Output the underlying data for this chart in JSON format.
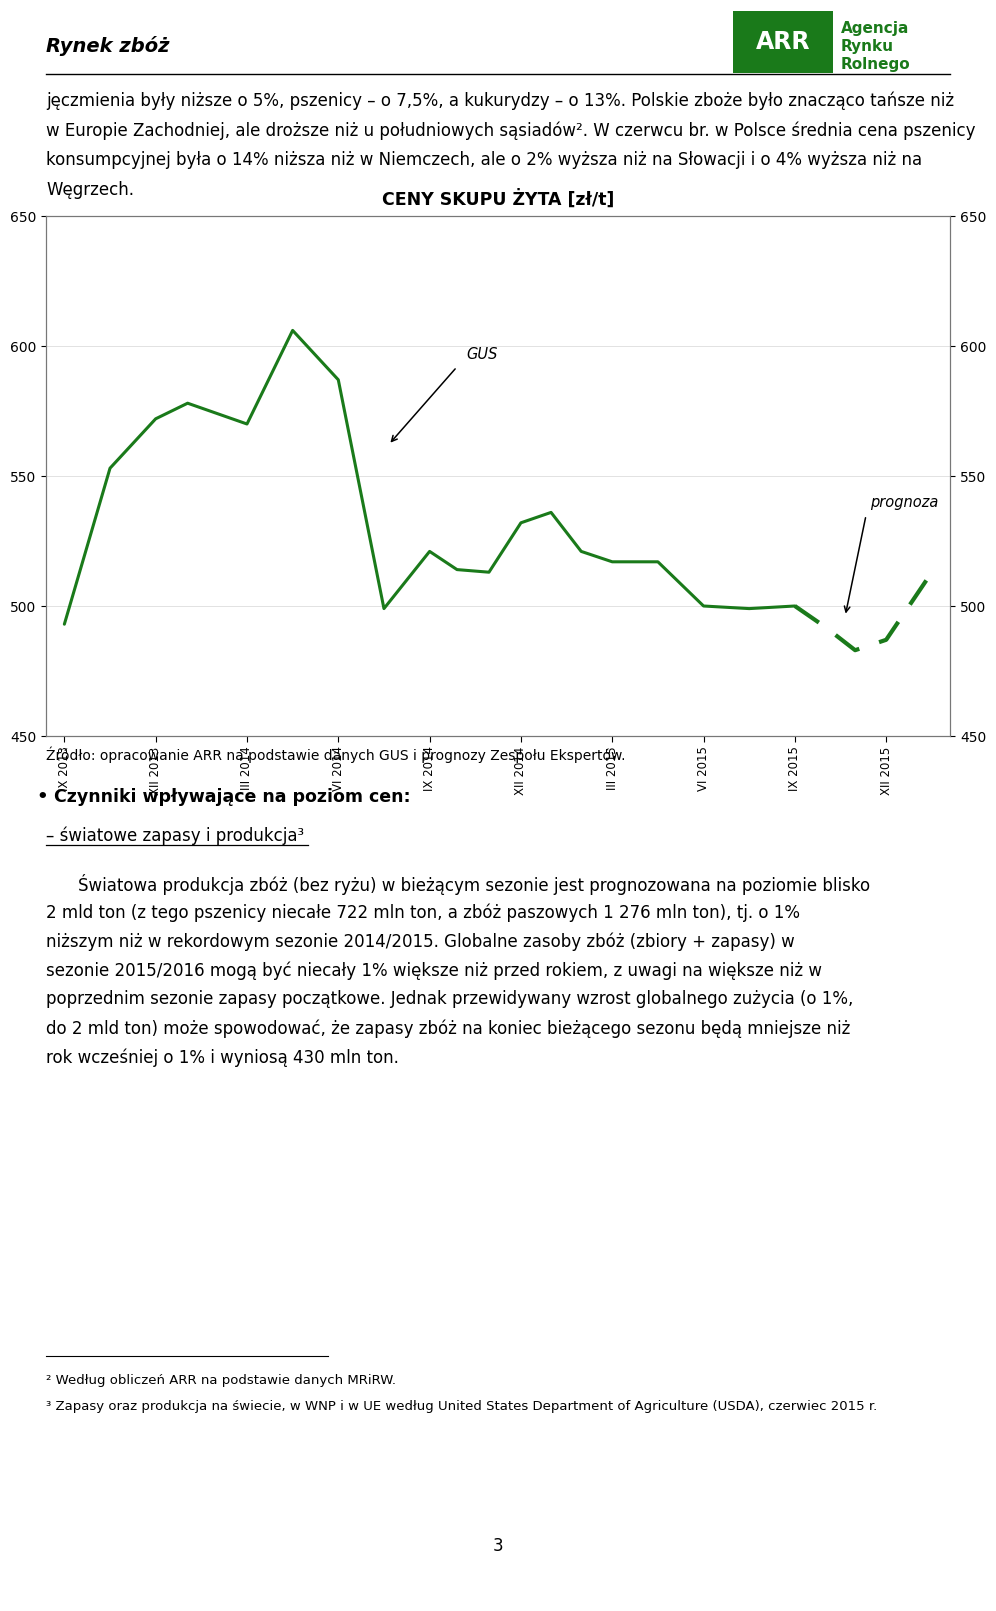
{
  "title": "CENY SKUPU ŻYTA [zł/t]",
  "page_title": "Rynek zbóż",
  "header_text_lines": [
    "jęczmienia były niższe o 5%, pszenicy – o 7,5%, a kukurydzy – o 13%. Polskie zboże było znacząco tańsze niż",
    "w Europie Zachodniej, ale droższe niż u południowych sąsiadów². W czerwcu br. w Polsce średnia cena pszenicy",
    "konsumpcyjnej była o 14% niższa niż w Niemczech, ale o 2% wyższa niż na Słowacji i o 4% wyższa niż na",
    "Węgrzech."
  ],
  "xlabel_ticks": [
    "IX 2013",
    "XII 2013",
    "III 2014",
    "VI 2014",
    "IX 2014",
    "XII 2014",
    "III 2015",
    "VI 2015",
    "IX 2015",
    "XII 2015"
  ],
  "ylim": [
    450,
    650
  ],
  "yticks": [
    450,
    500,
    550,
    600,
    650
  ],
  "gus_x": [
    0.0,
    0.5,
    1.0,
    1.35,
    2.0,
    2.5,
    3.0,
    3.5,
    4.0,
    4.3,
    4.65,
    5.0,
    5.33,
    5.66,
    6.0,
    6.5,
    7.0,
    7.5,
    8.0
  ],
  "gus_y": [
    493,
    553,
    572,
    578,
    570,
    606,
    587,
    499,
    521,
    514,
    513,
    532,
    536,
    521,
    517,
    517,
    500,
    499,
    500
  ],
  "prognoza_x": [
    8.0,
    8.33,
    8.66,
    9.0,
    9.5
  ],
  "prognoza_y": [
    500,
    492,
    483,
    487,
    513
  ],
  "line_color": "#1a7a1a",
  "source_text": "Źródło: opracowanie ARR na podstawie danych GUS i prognozy Zespołu Ekspertów.",
  "bullet_header": "Czynniki wpływające na poziom cen:",
  "underline_header": "– światowe zapasy i produkcja³",
  "body_text": "Światowa produkcja zbóż (bez ryżu) w bieżącym sezonie jest prognozowana na poziomie blisko 2 mld ton (z tego pszenicy niecałe 722 mln ton, a zbóż paszowych 1 276 mln ton), tj. o 1% niższym niż w rekordowym sezonie 2014/2015. Globalne zasoby zbóż (zbiory + zapasy) w sezonie 2015/2016 mogą być niecały 1% większe niż przed rokiem, z uwagi na większe niż w poprzednim sezonie zapasy początkowe. Jednak przewidywany wzrost globalnego zużycia (o 1%, do 2 mld ton) może spowodować, że zapasy zbóż na koniec bieżącego sezonu będą mniejsze niż rok wcześniej o 1% i wyniosą 430 mln ton.",
  "footnotes": [
    "² Według obliczeń ARR na podstawie danych MRiRW.",
    "³ Zapasy oraz produkcja na świecie, w WNP i w UE według United States Department of Agriculture (USDA), czerwiec 2015 r."
  ],
  "page_number": "3",
  "arr_logo_color": "#1a7a1a",
  "background_color": "#ffffff",
  "text_color": "#000000"
}
